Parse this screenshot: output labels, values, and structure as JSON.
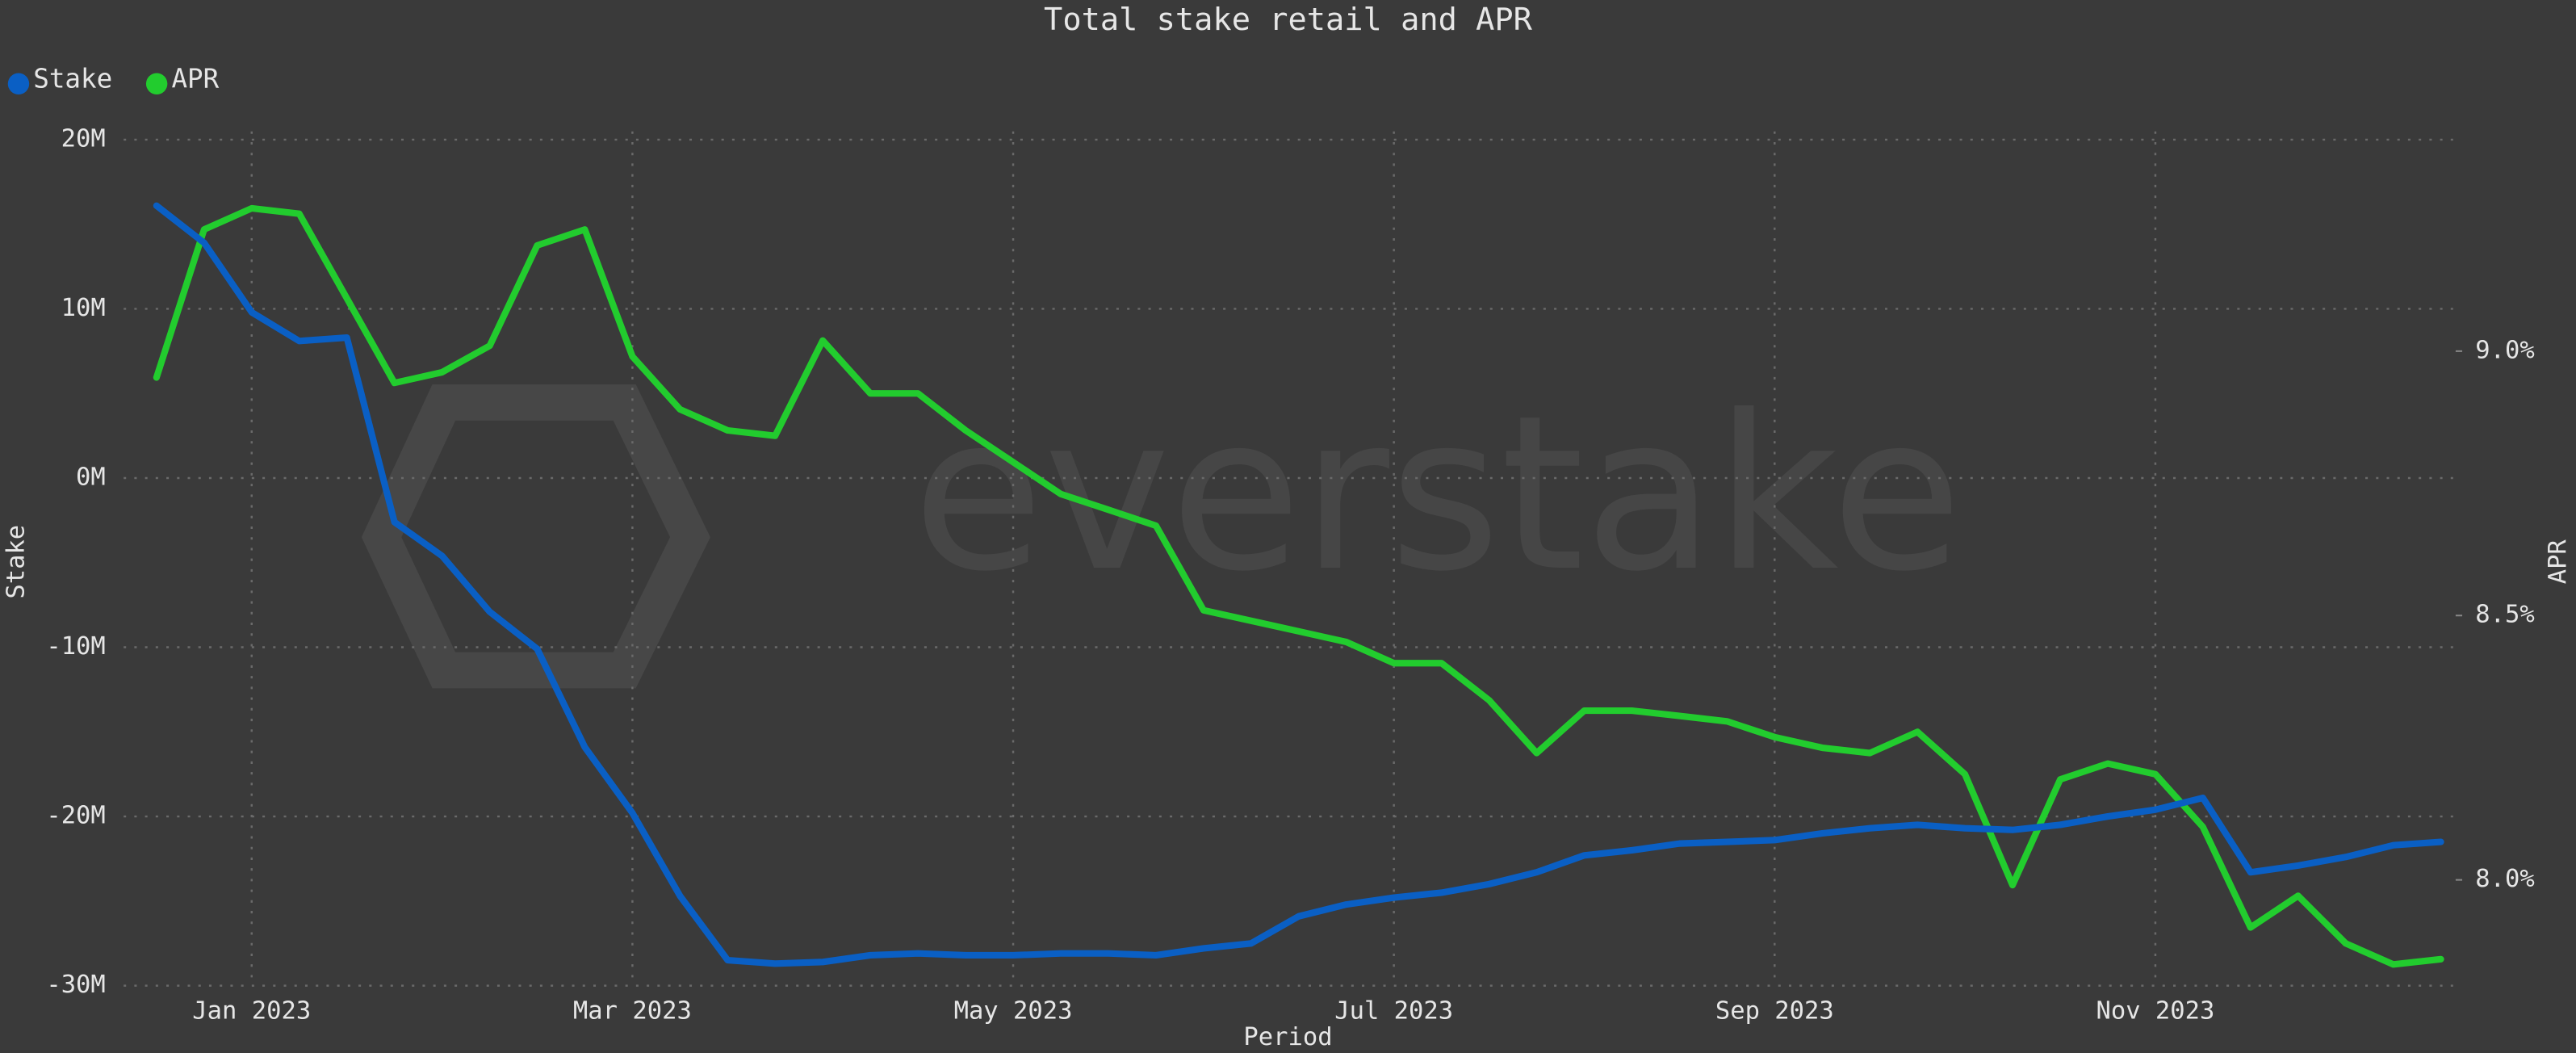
{
  "chart_data": {
    "type": "line",
    "title": "Total stake retail and APR",
    "watermark": "everstake",
    "x_label": "Period",
    "y_label": "Stake",
    "y2_label": "APR",
    "legend": "top-left",
    "grid": true,
    "categories": [
      null,
      null,
      "Jan 2023",
      null,
      null,
      null,
      null,
      null,
      null,
      null,
      "Mar 2023",
      null,
      null,
      null,
      null,
      null,
      null,
      null,
      "May 2023",
      null,
      null,
      null,
      null,
      null,
      null,
      null,
      "Jul 2023",
      null,
      null,
      null,
      null,
      null,
      null,
      null,
      "Sep 2023",
      null,
      null,
      null,
      null,
      null,
      null,
      null,
      "Nov 2023",
      null,
      null,
      null,
      null,
      null,
      null
    ],
    "ylim": [
      -30000000,
      20000000
    ],
    "yticks": [
      {
        "value": -30000000,
        "label": "-30M"
      },
      {
        "value": -20000000,
        "label": "-20M"
      },
      {
        "value": -10000000,
        "label": "-10M"
      },
      {
        "value": 0,
        "label": "0M"
      },
      {
        "value": 10000000,
        "label": "10M"
      },
      {
        "value": 20000000,
        "label": "20M"
      }
    ],
    "y2lim": [
      7.8,
      9.4
    ],
    "y2ticks": [
      {
        "value": 8,
        "label": "8.0%"
      },
      {
        "value": 8.5,
        "label": "8.5%"
      },
      {
        "value": 9,
        "label": "9.0%"
      }
    ],
    "series": [
      {
        "name": "Stake",
        "color": "#0a5fc4",
        "values": [
          16100000,
          13900000,
          9800000,
          8100000,
          8300000,
          -2600000,
          -4600000,
          -7900000,
          -10100000,
          -15900000,
          -19800000,
          -24700000,
          -28500000,
          -28700000,
          -28600000,
          -28200000,
          -28100000,
          -28200000,
          -28200000,
          -28100000,
          -28100000,
          -28200000,
          -27800000,
          -27500000,
          -25900000,
          -25200000,
          -24800000,
          -24500000,
          -24000000,
          -23300000,
          -22300000,
          -22000000,
          -21600000,
          -21500000,
          -21400000,
          -21000000,
          -20700000,
          -20500000,
          -20700000,
          -20800000,
          -20500000,
          -20000000,
          -19600000,
          -18900000,
          -23300000,
          -22900000,
          -22400000,
          -21700000,
          -21500000
        ]
      },
      {
        "name": "APR",
        "color": "#22cc2e",
        "axis": "y2",
        "values": [
          8.95,
          9.23,
          9.27,
          9.26,
          9.1,
          8.94,
          8.96,
          9.01,
          9.2,
          9.23,
          8.99,
          8.89,
          8.85,
          8.84,
          9.02,
          8.92,
          8.92,
          8.85,
          8.79,
          8.73,
          8.7,
          8.67,
          8.51,
          8.49,
          8.47,
          8.45,
          8.41,
          8.41,
          8.34,
          8.24,
          8.32,
          8.32,
          8.31,
          8.3,
          8.27,
          8.25,
          8.24,
          8.28,
          8.2,
          7.99,
          8.19,
          8.22,
          8.2,
          8.1,
          7.91,
          7.97,
          7.88,
          7.84,
          7.85
        ]
      }
    ]
  }
}
